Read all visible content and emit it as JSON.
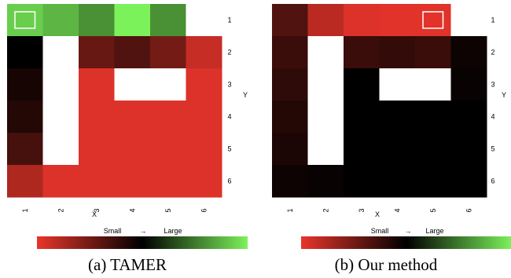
{
  "colors": {
    "low": "#e8352b",
    "mid": "#000000",
    "high": "#7cf25a",
    "blocked": "#ffffff"
  },
  "legend": {
    "small_label": "Small",
    "arrow": "→",
    "large_label": "Large"
  },
  "chart_data": [
    {
      "type": "heatmap",
      "caption": "(a) TAMER",
      "x_ticks": [
        "1",
        "2",
        "3",
        "4",
        "5",
        "6"
      ],
      "y_ticks": [
        "1",
        "2",
        "3",
        "4",
        "5",
        "6"
      ],
      "xlabel": "X",
      "ylabel": "Y",
      "value_scale": [
        -1,
        1
      ],
      "marked_cell": [
        1,
        1
      ],
      "cells": [
        [
          0.85,
          0.75,
          0.6,
          1.0,
          0.6,
          null
        ],
        [
          0.0,
          null,
          -0.45,
          -0.35,
          -0.5,
          -0.85
        ],
        [
          -0.1,
          null,
          -0.95,
          null,
          null,
          -0.95
        ],
        [
          -0.15,
          null,
          -0.95,
          -0.95,
          -0.95,
          -0.95
        ],
        [
          -0.3,
          null,
          -0.95,
          -0.95,
          -0.95,
          -0.95
        ],
        [
          -0.75,
          -0.95,
          -0.95,
          -0.95,
          -0.95,
          -0.95
        ]
      ]
    },
    {
      "type": "heatmap",
      "caption": "(b) Our method",
      "x_ticks": [
        "1",
        "2",
        "3",
        "4",
        "5",
        "6"
      ],
      "y_ticks": [
        "1",
        "2",
        "3",
        "4",
        "5",
        "6"
      ],
      "xlabel": "X",
      "ylabel": "Y",
      "value_scale": [
        -1,
        1
      ],
      "marked_cell": [
        1,
        5
      ],
      "cells": [
        [
          -0.35,
          -0.8,
          -0.95,
          -0.97,
          -0.97,
          null
        ],
        [
          -0.25,
          null,
          -0.25,
          -0.22,
          -0.25,
          -0.05
        ],
        [
          -0.2,
          null,
          0.0,
          null,
          null,
          -0.04
        ],
        [
          -0.15,
          null,
          0.0,
          0.0,
          0.0,
          0.0
        ],
        [
          -0.12,
          null,
          0.0,
          0.0,
          0.0,
          0.0
        ],
        [
          -0.06,
          -0.04,
          0.0,
          0.0,
          0.0,
          0.0
        ]
      ]
    }
  ]
}
